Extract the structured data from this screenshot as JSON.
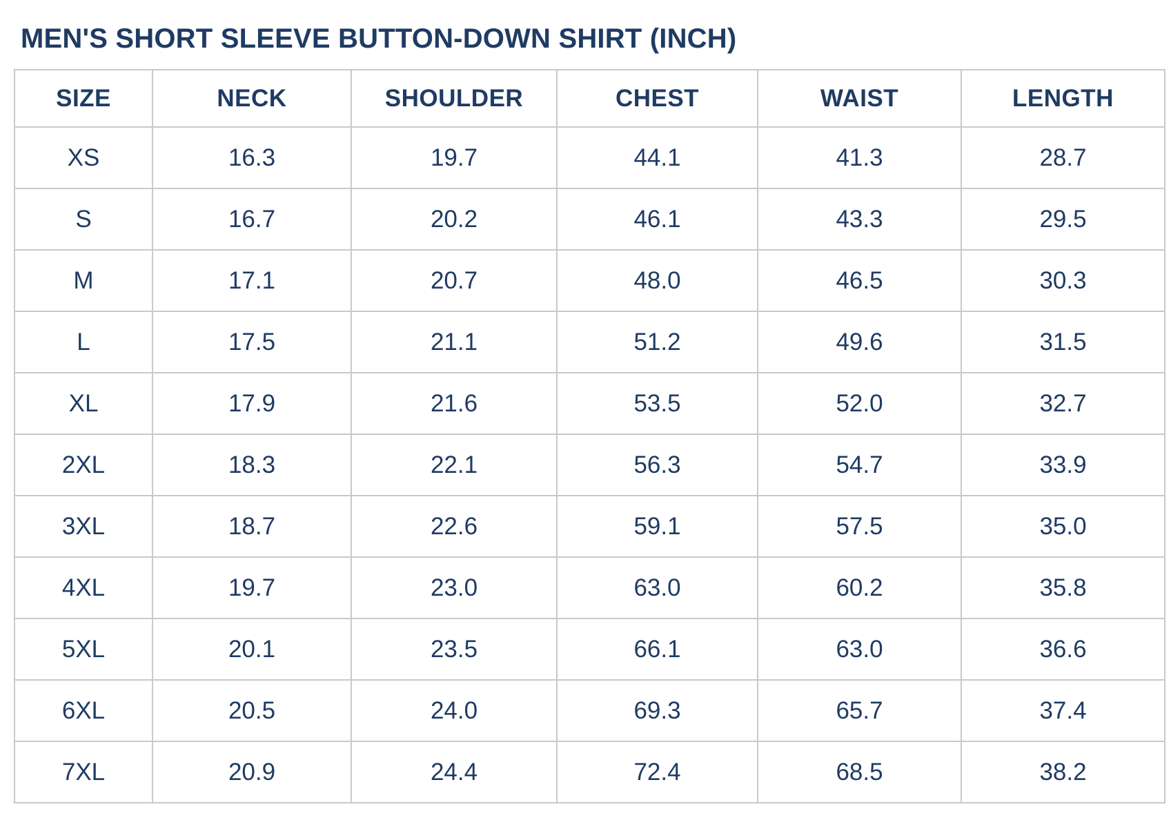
{
  "title": "MEN'S SHORT SLEEVE BUTTON-DOWN SHIRT (INCH)",
  "colors": {
    "text": "#1f3b63",
    "grid_border": "#c9c9c9",
    "background": "#ffffff"
  },
  "chart_data": {
    "type": "table",
    "title": "MEN'S SHORT SLEEVE BUTTON-DOWN SHIRT (INCH)",
    "unit": "INCH",
    "columns": [
      "SIZE",
      "NECK",
      "SHOULDER",
      "CHEST",
      "WAIST",
      "LENGTH"
    ],
    "rows": [
      [
        "XS",
        "16.3",
        "19.7",
        "44.1",
        "41.3",
        "28.7"
      ],
      [
        "S",
        "16.7",
        "20.2",
        "46.1",
        "43.3",
        "29.5"
      ],
      [
        "M",
        "17.1",
        "20.7",
        "48.0",
        "46.5",
        "30.3"
      ],
      [
        "L",
        "17.5",
        "21.1",
        "51.2",
        "49.6",
        "31.5"
      ],
      [
        "XL",
        "17.9",
        "21.6",
        "53.5",
        "52.0",
        "32.7"
      ],
      [
        "2XL",
        "18.3",
        "22.1",
        "56.3",
        "54.7",
        "33.9"
      ],
      [
        "3XL",
        "18.7",
        "22.6",
        "59.1",
        "57.5",
        "35.0"
      ],
      [
        "4XL",
        "19.7",
        "23.0",
        "63.0",
        "60.2",
        "35.8"
      ],
      [
        "5XL",
        "20.1",
        "23.5",
        "66.1",
        "63.0",
        "36.6"
      ],
      [
        "6XL",
        "20.5",
        "24.0",
        "69.3",
        "65.7",
        "37.4"
      ],
      [
        "7XL",
        "20.9",
        "24.4",
        "72.4",
        "68.5",
        "38.2"
      ]
    ]
  }
}
